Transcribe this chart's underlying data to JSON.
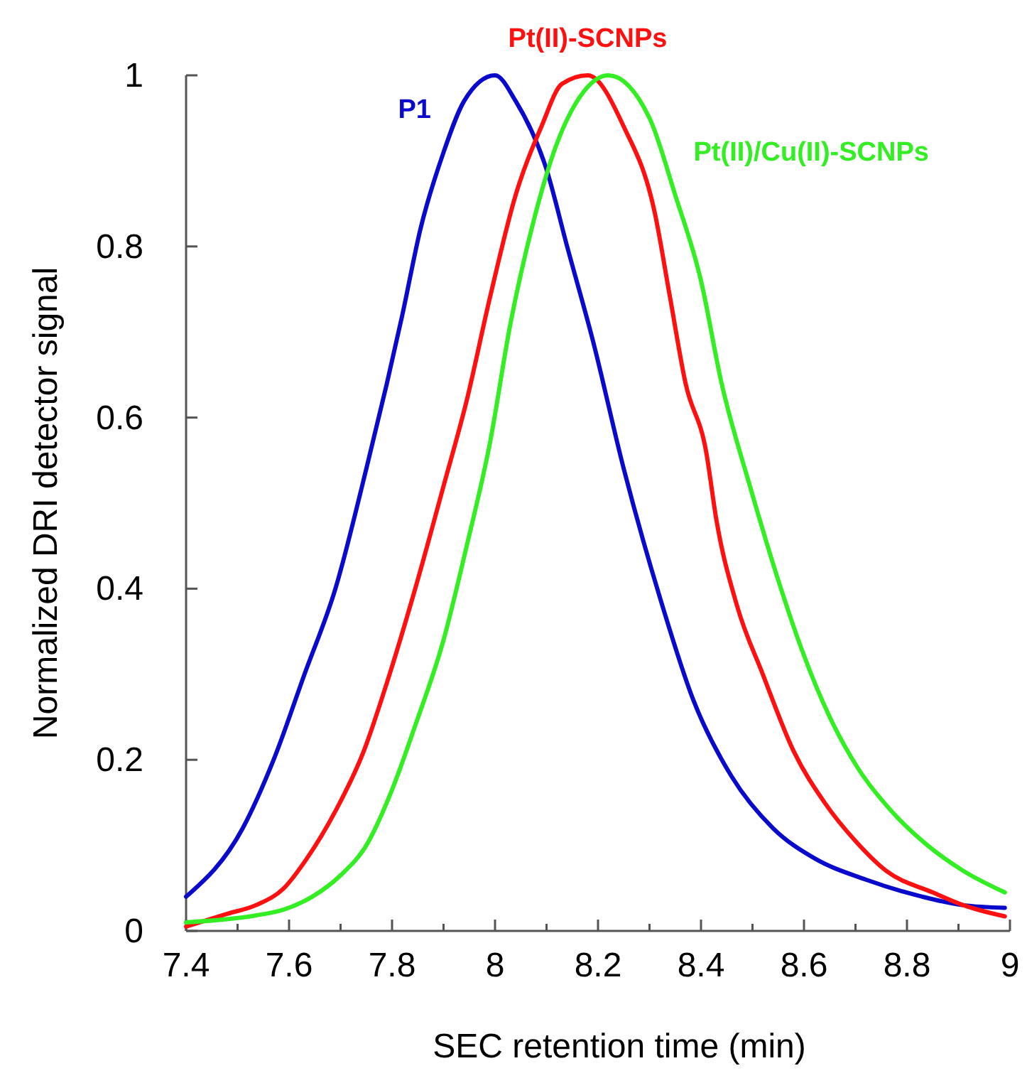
{
  "chart_data": {
    "type": "line",
    "xlabel": "SEC retention time (min)",
    "ylabel": "Normalized DRI detector signal",
    "xlim": [
      7.4,
      9
    ],
    "ylim": [
      0,
      1
    ],
    "xticks": [
      7.4,
      {
        "value": 7.5,
        "label": null
      },
      7.6,
      {
        "value": 7.7,
        "label": null
      },
      7.8,
      {
        "value": 7.9,
        "label": null
      },
      8,
      {
        "value": 8.1,
        "label": null
      },
      8.2,
      {
        "value": 8.3,
        "label": null
      },
      8.4,
      {
        "value": 8.5,
        "label": null
      },
      8.6,
      {
        "value": 8.7,
        "label": null
      },
      8.8,
      {
        "value": 8.9,
        "label": null
      },
      9
    ],
    "yticks": [
      0,
      0.2,
      0.4,
      0.6,
      0.8,
      1
    ],
    "grid": false,
    "marker": "none",
    "line_style": "solid",
    "series": [
      {
        "name": "P1",
        "color": "#0a0acc",
        "x": [
          7.4,
          7.51,
          7.57,
          7.63,
          7.69,
          7.75,
          7.79,
          7.82,
          7.855,
          7.9,
          7.94,
          8.0,
          8.04,
          8.1,
          8.14,
          8.19,
          8.25,
          8.32,
          8.385,
          8.46,
          8.54,
          8.62,
          8.72,
          8.83,
          8.91,
          8.99
        ],
        "values": [
          0.04,
          0.12,
          0.2,
          0.3,
          0.4,
          0.54,
          0.64,
          0.72,
          0.82,
          0.91,
          0.97,
          1.0,
          0.97,
          0.89,
          0.8,
          0.69,
          0.54,
          0.39,
          0.27,
          0.18,
          0.12,
          0.085,
          0.06,
          0.04,
          0.03,
          0.027
        ]
      },
      {
        "name": "Pt(II)-SCNPs",
        "color": "#ff1010",
        "x": [
          7.4,
          7.48,
          7.535,
          7.59,
          7.635,
          7.69,
          7.745,
          7.79,
          7.845,
          7.9,
          7.945,
          7.99,
          8.04,
          8.09,
          8.13,
          8.18,
          8.25,
          8.31,
          8.34,
          8.37,
          8.41,
          8.43,
          8.47,
          8.52,
          8.58,
          8.64,
          8.7,
          8.76,
          8.85,
          8.91,
          8.99
        ],
        "values": [
          0.005,
          0.02,
          0.03,
          0.05,
          0.085,
          0.14,
          0.21,
          0.29,
          0.4,
          0.52,
          0.62,
          0.74,
          0.86,
          0.94,
          0.99,
          1.0,
          0.94,
          0.84,
          0.74,
          0.64,
          0.56,
          0.48,
          0.38,
          0.3,
          0.21,
          0.15,
          0.105,
          0.07,
          0.045,
          0.03,
          0.017
        ]
      },
      {
        "name": "Pt(II)/Cu(II)-SCNPs",
        "color": "#33ee22",
        "x": [
          7.4,
          7.535,
          7.59,
          7.645,
          7.7,
          7.75,
          7.8,
          7.845,
          7.9,
          7.945,
          7.99,
          8.03,
          8.075,
          8.12,
          8.165,
          8.22,
          8.3,
          8.35,
          8.4,
          8.44,
          8.495,
          8.55,
          8.595,
          8.65,
          8.705,
          8.77,
          8.84,
          8.91,
          8.99
        ],
        "values": [
          0.01,
          0.018,
          0.025,
          0.04,
          0.065,
          0.1,
          0.165,
          0.24,
          0.34,
          0.45,
          0.57,
          0.71,
          0.83,
          0.92,
          0.975,
          1.0,
          0.95,
          0.86,
          0.76,
          0.64,
          0.52,
          0.41,
          0.33,
          0.25,
          0.19,
          0.14,
          0.1,
          0.07,
          0.045
        ]
      }
    ]
  }
}
